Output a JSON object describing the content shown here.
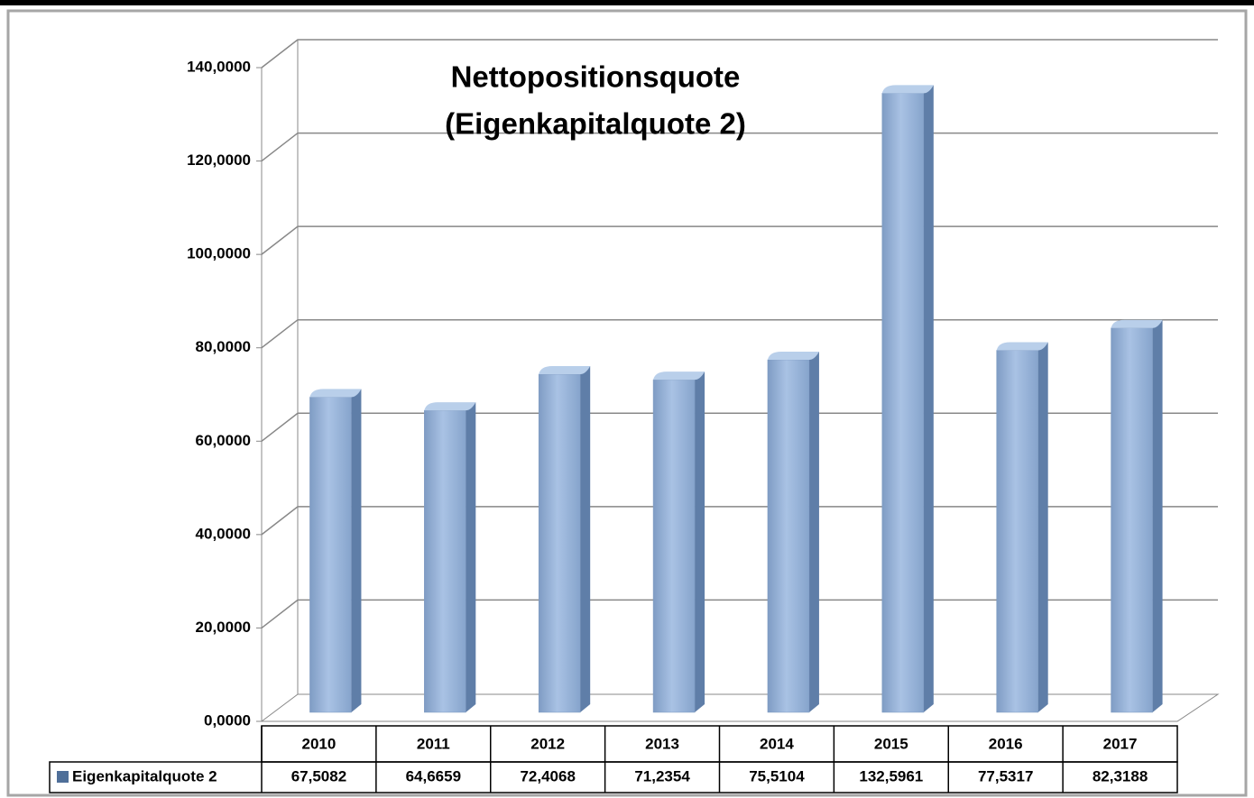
{
  "chart_data": {
    "type": "bar3d",
    "title": [
      "Nettopositionsquote",
      "(Eigenkapitalquote 2)"
    ],
    "categories": [
      "2010",
      "2011",
      "2012",
      "2013",
      "2014",
      "2015",
      "2016",
      "2017"
    ],
    "series": [
      {
        "name": "Eigenkapitalquote 2",
        "color": "#95b3d7",
        "values": [
          67.5082,
          64.6659,
          72.4068,
          71.2354,
          75.5104,
          132.5961,
          77.5317,
          82.3188
        ],
        "value_labels": [
          "67,5082",
          "64,6659",
          "72,4068",
          "71,2354",
          "75,5104",
          "132,5961",
          "77,5317",
          "82,3188"
        ]
      }
    ],
    "ylim": [
      0,
      140
    ],
    "yticks": [
      {
        "value": 0,
        "label": "0,0000"
      },
      {
        "value": 20,
        "label": "20,0000"
      },
      {
        "value": 40,
        "label": "40,0000"
      },
      {
        "value": 60,
        "label": "60,0000"
      },
      {
        "value": 80,
        "label": "80,0000"
      },
      {
        "value": 100,
        "label": "100,0000"
      },
      {
        "value": 120,
        "label": "120,0000"
      },
      {
        "value": 140,
        "label": "140,0000"
      }
    ],
    "grid": true
  }
}
